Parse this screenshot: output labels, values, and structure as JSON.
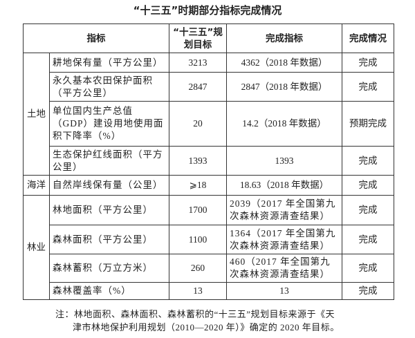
{
  "title": "“十三五”时期部分指标完成情况",
  "headers": {
    "indicator": "指标",
    "target": "“十三五”规划目标",
    "achieved": "完成指标",
    "status": "完成情况"
  },
  "groups": [
    {
      "category": "土地",
      "rows": [
        {
          "indicator": "耕地保有量（平方公里）",
          "target": "3213",
          "achieved": "4362（2018 年数据）",
          "status": "完成"
        },
        {
          "indicator": "永久基本农田保护面积（平方公里）",
          "target": "2847",
          "achieved": "2847（2018 年数据）",
          "status": "完成"
        },
        {
          "indicator": "单位国内生产总值（GDP）建设用地使用面积下降率（%）",
          "target": "20",
          "achieved": "14.2（2018 年数据）",
          "status": "预期完成"
        },
        {
          "indicator": "生态保护红线面积（平方公里）",
          "target": "1393",
          "achieved": "1393",
          "status": "完成"
        }
      ]
    },
    {
      "category": "海洋",
      "rows": [
        {
          "indicator": "自然岸线保有量（公里）",
          "target": "⩾18",
          "achieved": "18.63（2018 年数据）",
          "status": "完成"
        }
      ]
    },
    {
      "category": "林业",
      "rows": [
        {
          "indicator": "林地面积（平方公里）",
          "target": "1700",
          "achieved": "2039（2017 年全国第九次森林资源清查结果）",
          "status": "完成"
        },
        {
          "indicator": "森林面积（平方公里）",
          "target": "1100",
          "achieved": "1364（2017 年全国第九次森林资源清查结果）",
          "status": "完成"
        },
        {
          "indicator": "森林蓄积（万立方米）",
          "target": "260",
          "achieved": "460（2017 年全国第九次森林资源清查结果）",
          "status": "完成"
        },
        {
          "indicator": "森林覆盖率（%）",
          "target": "13",
          "achieved": "13",
          "status": "完成"
        }
      ]
    }
  ],
  "note": {
    "line1": "注：林地面积、森林面积、森林蓄积的“十三五”规划目标来源于《天",
    "line2": "津市林地保护利用规划（2010—2020 年）》确定的 2020 年目标。"
  }
}
